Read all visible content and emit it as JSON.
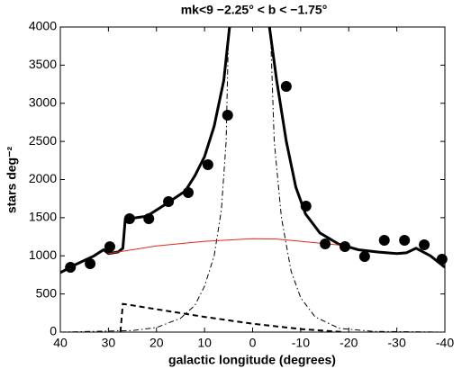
{
  "chart_data": {
    "type": "line",
    "title": "mk<9     −2.25° < b < −1.75°",
    "xlabel": "galactic longitude (degrees)",
    "ylabel": "stars deg⁻²",
    "xlim": [
      40,
      -40
    ],
    "ylim": [
      0,
      4000
    ],
    "xticks": [
      40,
      30,
      20,
      10,
      0,
      -10,
      -20,
      -30,
      -40
    ],
    "yticks": [
      0,
      500,
      1000,
      1500,
      2000,
      2500,
      3000,
      3500,
      4000
    ],
    "points": {
      "color": "#000000",
      "x": [
        37.9,
        33.8,
        29.7,
        25.6,
        21.6,
        17.5,
        13.4,
        9.3,
        5.2,
        -7.0,
        -11.1,
        -15.1,
        -19.2,
        -23.3,
        -27.4,
        -31.6,
        -35.7,
        -39.4
      ],
      "values": [
        850,
        897,
        1120,
        1487,
        1487,
        1711,
        1829,
        2195,
        2844,
        3221,
        1652,
        1156,
        1121,
        991,
        1204,
        1204,
        1145,
        956
      ]
    },
    "series": [
      {
        "color": "#000000",
        "style": "thick",
        "x": [
          40,
          37,
          33,
          31,
          30,
          28,
          27,
          26.5,
          22,
          18,
          14,
          12,
          10,
          8,
          6,
          4.8,
          null,
          -3.5,
          -5,
          -7,
          -9,
          -11,
          -14,
          -18,
          -22,
          -26,
          -30,
          -32,
          -34,
          -37,
          -40
        ],
        "values": [
          780,
          880,
          1000,
          1080,
          1030,
          1050,
          1100,
          1480,
          1520,
          1680,
          1850,
          2050,
          2300,
          2700,
          3300,
          4000,
          null,
          4000,
          3300,
          2500,
          1900,
          1550,
          1300,
          1150,
          1080,
          1050,
          1030,
          1040,
          1100,
          1000,
          850
        ]
      },
      {
        "color": "#000000",
        "style": "dashdot",
        "x": [
          40,
          25,
          20,
          15,
          12,
          10,
          8,
          6.5,
          5.5,
          5,
          null,
          -3.7,
          -4.5,
          -6,
          -8,
          -10,
          -13,
          -18,
          -25,
          -40
        ],
        "values": [
          0,
          20,
          60,
          180,
          350,
          600,
          1000,
          1600,
          2500,
          4000,
          null,
          4000,
          2500,
          1500,
          800,
          450,
          200,
          50,
          10,
          0
        ]
      },
      {
        "color": "#000000",
        "style": "dashed",
        "x": [
          27.5,
          27,
          20,
          10,
          0,
          -10,
          -19
        ],
        "values": [
          0,
          370,
          300,
          200,
          110,
          40,
          0
        ]
      },
      {
        "color": "#e8251e",
        "style": "thin",
        "x": [
          30,
          20,
          10,
          0,
          -5,
          -10,
          -15,
          -20
        ],
        "values": [
          1030,
          1130,
          1190,
          1225,
          1220,
          1190,
          1160,
          1130
        ]
      }
    ]
  }
}
